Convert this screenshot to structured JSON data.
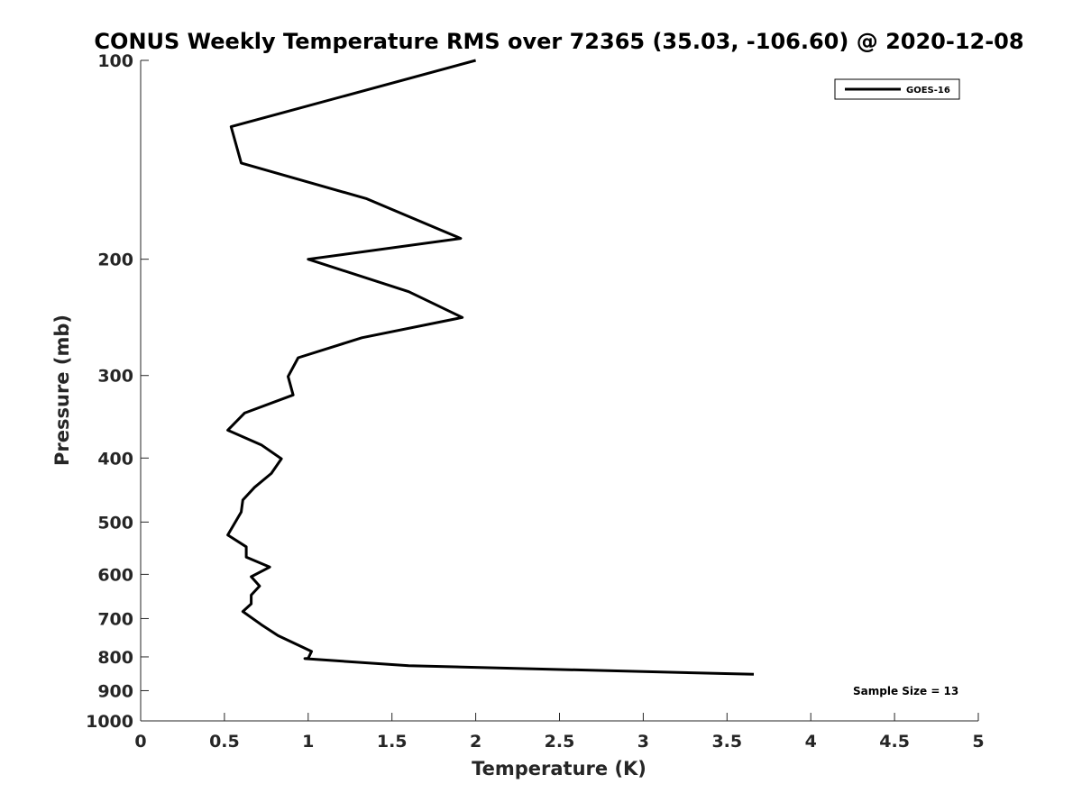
{
  "chart_data": {
    "type": "line",
    "title": "CONUS Weekly Temperature RMS over 72365 (35.03, -106.60) @ 2020-12-08",
    "xlabel": "Temperature (K)",
    "ylabel": "Pressure (mb)",
    "xlim": [
      0,
      5
    ],
    "ylim": [
      100,
      1000
    ],
    "y_scale": "log",
    "y_reversed": true,
    "grid": false,
    "legend_position": "top-right",
    "x_ticks": [
      "0",
      "0.5",
      "1",
      "1.5",
      "2",
      "2.5",
      "3",
      "3.5",
      "4",
      "4.5",
      "5"
    ],
    "x_tick_values": [
      0,
      0.5,
      1,
      1.5,
      2,
      2.5,
      3,
      3.5,
      4,
      4.5,
      5
    ],
    "y_ticks": [
      "100",
      "200",
      "300",
      "400",
      "500",
      "600",
      "700",
      "800",
      "900",
      "1000"
    ],
    "y_tick_values": [
      100,
      200,
      300,
      400,
      500,
      600,
      700,
      800,
      900,
      1000
    ],
    "series": [
      {
        "name": "GOES-16",
        "color": "#000000",
        "points": [
          {
            "x": 2.0,
            "p": 100
          },
          {
            "x": 0.54,
            "p": 126
          },
          {
            "x": 0.6,
            "p": 143
          },
          {
            "x": 1.35,
            "p": 162
          },
          {
            "x": 1.91,
            "p": 186
          },
          {
            "x": 1.0,
            "p": 200
          },
          {
            "x": 1.6,
            "p": 224
          },
          {
            "x": 1.92,
            "p": 245
          },
          {
            "x": 1.32,
            "p": 263
          },
          {
            "x": 0.94,
            "p": 282
          },
          {
            "x": 0.88,
            "p": 301
          },
          {
            "x": 0.91,
            "p": 321
          },
          {
            "x": 0.62,
            "p": 342
          },
          {
            "x": 0.52,
            "p": 363
          },
          {
            "x": 0.72,
            "p": 382
          },
          {
            "x": 0.84,
            "p": 401
          },
          {
            "x": 0.78,
            "p": 422
          },
          {
            "x": 0.68,
            "p": 443
          },
          {
            "x": 0.61,
            "p": 463
          },
          {
            "x": 0.6,
            "p": 483
          },
          {
            "x": 0.52,
            "p": 523
          },
          {
            "x": 0.63,
            "p": 545
          },
          {
            "x": 0.63,
            "p": 565
          },
          {
            "x": 0.77,
            "p": 585
          },
          {
            "x": 0.66,
            "p": 605
          },
          {
            "x": 0.71,
            "p": 625
          },
          {
            "x": 0.66,
            "p": 645
          },
          {
            "x": 0.66,
            "p": 665
          },
          {
            "x": 0.61,
            "p": 683
          },
          {
            "x": 0.72,
            "p": 715
          },
          {
            "x": 0.82,
            "p": 743
          },
          {
            "x": 0.96,
            "p": 772
          },
          {
            "x": 1.02,
            "p": 785
          },
          {
            "x": 1.0,
            "p": 804
          },
          {
            "x": 0.98,
            "p": 805
          },
          {
            "x": 1.6,
            "p": 825
          },
          {
            "x": 3.66,
            "p": 850
          }
        ]
      }
    ],
    "annotations": [
      {
        "text": "Sample Size = 13"
      }
    ]
  }
}
